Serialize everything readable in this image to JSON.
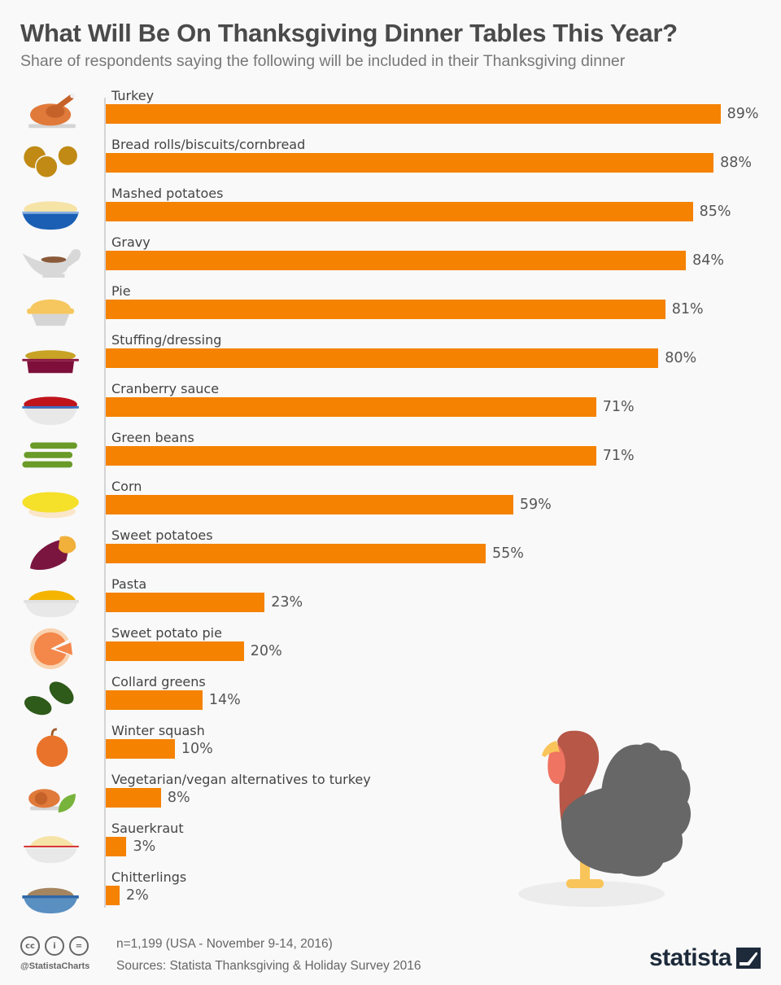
{
  "header": {
    "title": "What Will Be On Thanksgiving Dinner Tables This Year?",
    "subtitle": "Share of respondents saying the following will be included in their Thanksgiving dinner"
  },
  "chart_data": {
    "type": "bar",
    "orientation": "horizontal",
    "title": "What Will Be On Thanksgiving Dinner Tables This Year?",
    "subtitle": "Share of respondents saying the following will be included in their Thanksgiving dinner",
    "xlabel": "",
    "ylabel": "",
    "xlim": [
      0,
      100
    ],
    "grid": false,
    "legend": "none",
    "bar_color": "#f58200",
    "unit": "%",
    "categories": [
      "Turkey",
      "Bread rolls/biscuits/cornbread",
      "Mashed potatoes",
      "Gravy",
      "Pie",
      "Stuffing/dressing",
      "Cranberry sauce",
      "Green beans",
      "Corn",
      "Sweet potatoes",
      "Pasta",
      "Sweet potato pie",
      "Collard greens",
      "Winter squash",
      "Vegetarian/vegan alternatives to turkey",
      "Sauerkraut",
      "Chitterlings"
    ],
    "values": [
      89,
      88,
      85,
      84,
      81,
      80,
      71,
      71,
      59,
      55,
      23,
      20,
      14,
      10,
      8,
      3,
      2
    ]
  },
  "rows": [
    {
      "label": "Turkey",
      "value": 89,
      "value_label": "89%",
      "icon": "roast-turkey-icon"
    },
    {
      "label": "Bread rolls/biscuits/cornbread",
      "value": 88,
      "value_label": "88%",
      "icon": "bread-rolls-icon"
    },
    {
      "label": "Mashed potatoes",
      "value": 85,
      "value_label": "85%",
      "icon": "mashed-potatoes-bowl-icon"
    },
    {
      "label": "Gravy",
      "value": 84,
      "value_label": "84%",
      "icon": "gravy-boat-icon"
    },
    {
      "label": "Pie",
      "value": 81,
      "value_label": "81%",
      "icon": "pie-icon"
    },
    {
      "label": "Stuffing/dressing",
      "value": 80,
      "value_label": "80%",
      "icon": "stuffing-dish-icon"
    },
    {
      "label": "Cranberry sauce",
      "value": 71,
      "value_label": "71%",
      "icon": "cranberry-bowl-icon"
    },
    {
      "label": "Green beans",
      "value": 71,
      "value_label": "71%",
      "icon": "green-beans-icon"
    },
    {
      "label": "Corn",
      "value": 59,
      "value_label": "59%",
      "icon": "corn-cob-icon"
    },
    {
      "label": "Sweet potatoes",
      "value": 55,
      "value_label": "55%",
      "icon": "sweet-potato-icon"
    },
    {
      "label": "Pasta",
      "value": 23,
      "value_label": "23%",
      "icon": "pasta-bowl-icon"
    },
    {
      "label": "Sweet potato pie",
      "value": 20,
      "value_label": "20%",
      "icon": "sweet-potato-pie-icon"
    },
    {
      "label": "Collard greens",
      "value": 14,
      "value_label": "14%",
      "icon": "collard-leaves-icon"
    },
    {
      "label": "Winter squash",
      "value": 10,
      "value_label": "10%",
      "icon": "pumpkin-icon"
    },
    {
      "label": "Vegetarian/vegan alternatives to turkey",
      "value": 8,
      "value_label": "8%",
      "icon": "vegan-turkey-leaf-icon"
    },
    {
      "label": "Sauerkraut",
      "value": 3,
      "value_label": "3%",
      "icon": "sauerkraut-bowl-icon"
    },
    {
      "label": "Chitterlings",
      "value": 2,
      "value_label": "2%",
      "icon": "chitterlings-bowl-icon"
    }
  ],
  "colors": {
    "bar": "#f58200",
    "background": "#f9f9f9",
    "title": "#4a4a4a",
    "text": "#444444"
  },
  "footer": {
    "license_icons": [
      "cc",
      "by",
      "nd"
    ],
    "license_glyphs": {
      "cc": "cc",
      "by": "i",
      "nd": "="
    },
    "handle": "@StatistaCharts",
    "note": "n=1,199 (USA - November 9-14, 2016)",
    "source": "Sources: Statista Thanksgiving & Holiday Survey 2016",
    "brand": "statista"
  }
}
